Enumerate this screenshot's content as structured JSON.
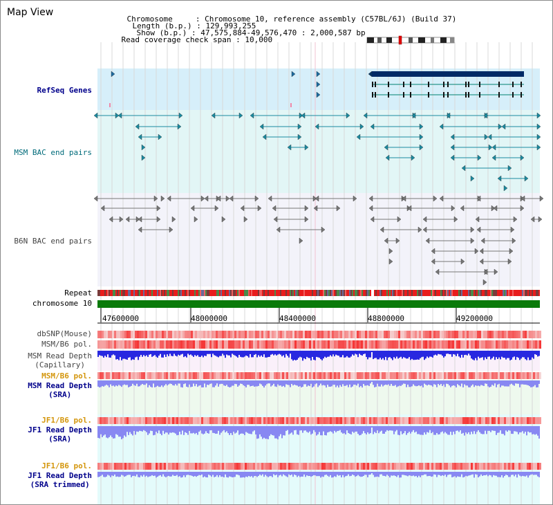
{
  "title": "Map View",
  "info": {
    "chromosome": {
      "label": "Chromosome",
      "value": "Chromosome 10, reference assembly (C57BL/6J) (Build 37)"
    },
    "length": {
      "label": "Length (b.p.)",
      "value": "129,993,255"
    },
    "show": {
      "label": "Show (b.p.)",
      "value": "47,575,884-49,576,470 : 2,000,587 bp"
    },
    "coverage": {
      "label": "Read coverage check span",
      "value": "10,000"
    }
  },
  "tracks": {
    "refseq": "RefSeq Genes",
    "msm_bac": "MSM BAC end pairs",
    "b6n_bac": "B6N BAC end pairs",
    "repeat": "Repeat",
    "chromosome": "chromosome 10",
    "dbsnp": "dbSNP(Mouse)",
    "msm_b6_pol": "MSM/B6 pol.",
    "msm_depth_cap_1": "MSM Read Depth",
    "msm_depth_cap_2": "(Capillary)",
    "msm_b6_pol2": "MSM/B6 pol.",
    "msm_depth_sra_1": "MSM Read Depth",
    "msm_depth_sra_2": "(SRA)",
    "jf1_b6_pol": "JF1/B6 pol.",
    "jf1_depth_sra_1": "JF1 Read Depth",
    "jf1_depth_sra_2": "(SRA)",
    "jf1_b6_pol2": "JF1/B6 pol.",
    "jf1_depth_trim_1": "JF1 Read Depth",
    "jf1_depth_trim_2": "(SRA trimmed)"
  },
  "axis": {
    "ticks": [
      "47600000",
      "48000000",
      "48400000",
      "48800000",
      "49200000"
    ]
  },
  "colors": {
    "refseq_bg": "#d6effa",
    "msm_bac_bg": "#e2f6f6",
    "b6n_bac_bg": "#f3f3fa",
    "bottom_bg": "#e4fbfb",
    "chromosome_bar": "#0a7a0a",
    "gene_stroke": "#008070",
    "gene_block": "#002a66",
    "read_depth": "#2828e0",
    "read_depth_light": "#8888f2",
    "pol_red": "#f04040"
  }
}
